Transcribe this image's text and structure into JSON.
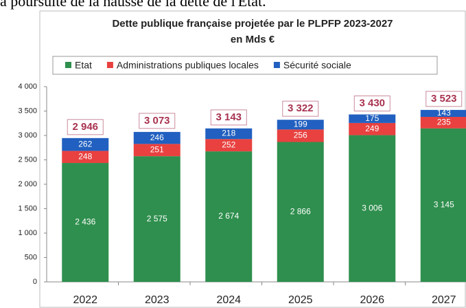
{
  "caption": "a poursuite de la hausse de la dette de l'Etat.",
  "chart_data": {
    "type": "stacked_bar",
    "title": "Dette publique française projetée par le PLPFP 2023-2027",
    "subtitle": "en Mds €",
    "categories": [
      "2022",
      "2023",
      "2024",
      "2025",
      "2026",
      "2027"
    ],
    "series": [
      {
        "name": "Etat",
        "color": "#2f8f4e",
        "values": [
          2436,
          2575,
          2674,
          2866,
          3006,
          3145
        ],
        "value_labels": [
          "2 436",
          "2 575",
          "2 674",
          "2 866",
          "3 006",
          "3 145"
        ]
      },
      {
        "name": "Administrations publiques locales",
        "color": "#e8413f",
        "values": [
          248,
          251,
          252,
          256,
          249,
          235
        ]
      },
      {
        "name": "Sécurité sociale",
        "color": "#2160c0",
        "values": [
          262,
          246,
          218,
          199,
          175,
          143
        ]
      }
    ],
    "totals": [
      2946,
      3073,
      3143,
      3322,
      3430,
      3523
    ],
    "total_labels": [
      "2 946",
      "3 073",
      "3 143",
      "3 322",
      "3 430",
      "3 523"
    ],
    "ylim": [
      0,
      4000
    ],
    "yticks": [
      0,
      500,
      {
        "value": 1000,
        "label": "1 000"
      },
      {
        "value": 1500,
        "label": "1 500"
      },
      {
        "value": 2000,
        "label": "2 000"
      },
      {
        "value": 2500,
        "label": "2 500"
      },
      {
        "value": 3000,
        "label": "3 000"
      },
      {
        "value": 3500,
        "label": "3 500"
      },
      {
        "value": 4000,
        "label": "4 000"
      }
    ],
    "legend": "top"
  }
}
